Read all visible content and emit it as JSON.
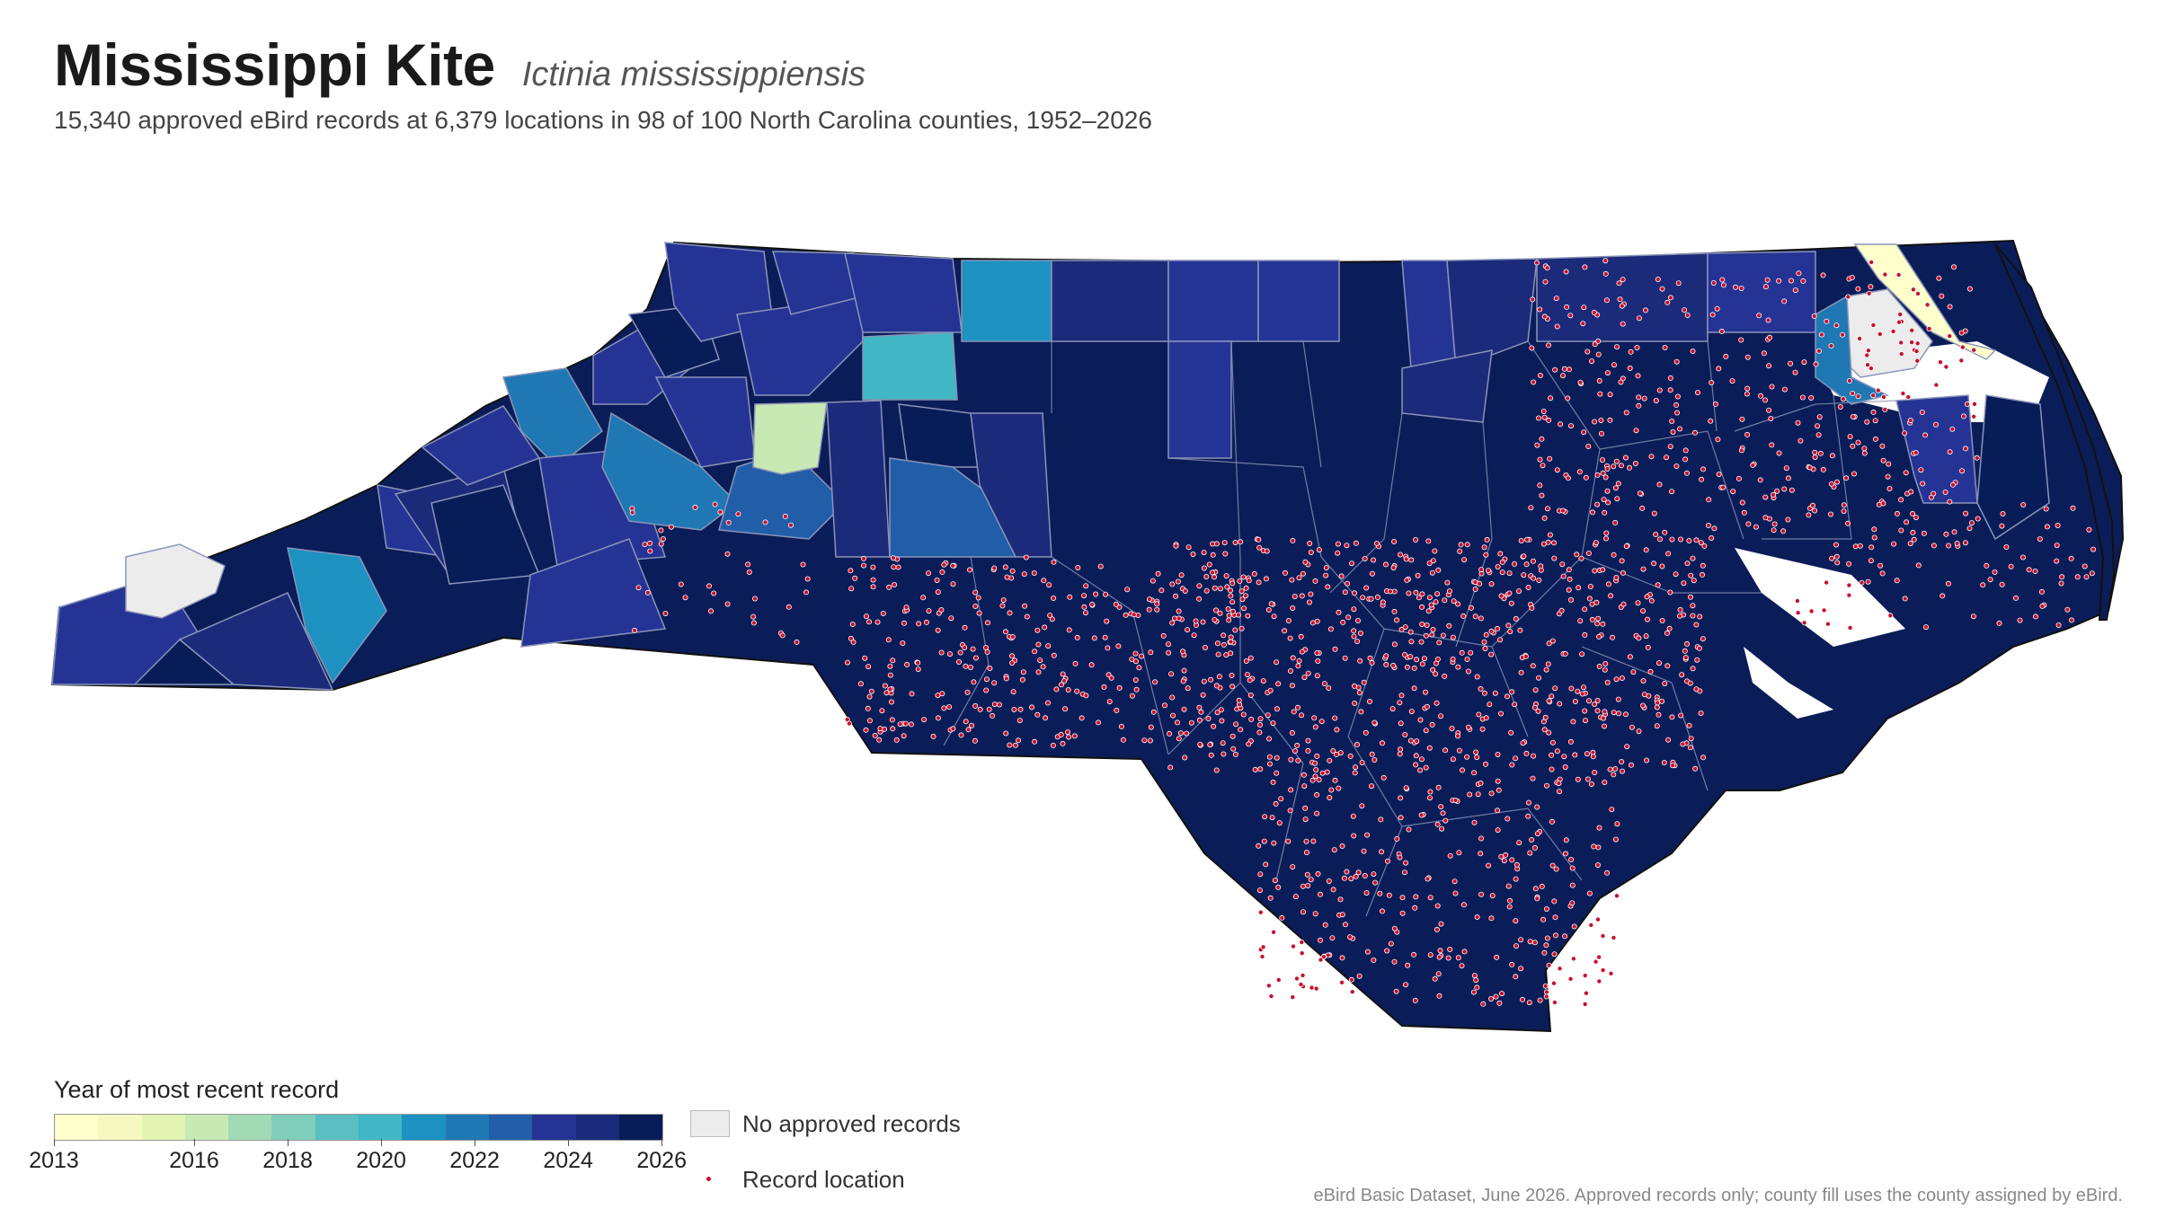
{
  "title": "Mississippi Kite",
  "scientific_name": "Ictinia mississippiensis",
  "subtitle": "15,340 approved eBird records at 6,379 locations in 98 of 100 North Carolina counties, 1952–2026",
  "legend": {
    "title": "Year of most recent record",
    "ticks": [
      "2013",
      "2016",
      "2018",
      "2020",
      "2022",
      "2024",
      "2026"
    ],
    "tick_years": [
      2013,
      2016,
      2018,
      2020,
      2022,
      2024,
      2026
    ],
    "range": [
      2013,
      2026
    ],
    "colors": [
      "#ffffcc",
      "#f4f9c1",
      "#e3f3b2",
      "#c7e9b4",
      "#a1dab4",
      "#7fcdbb",
      "#5bbec3",
      "#41b6c4",
      "#1d91c0",
      "#1f78b4",
      "#225ea8",
      "#253494",
      "#1c2a7a",
      "#081d58"
    ],
    "no_records_label": "No approved records",
    "record_location_label": "Record location",
    "no_records_color": "#ececec",
    "record_dot_color": "#c8102e"
  },
  "map_colors": {
    "dominant_fill": "#0b1d58",
    "border": "#8a94b8",
    "outline": "#111111"
  },
  "footnote": "eBird Basic Dataset, June 2026. Approved records only; county fill uses the county assigned by eBird."
}
